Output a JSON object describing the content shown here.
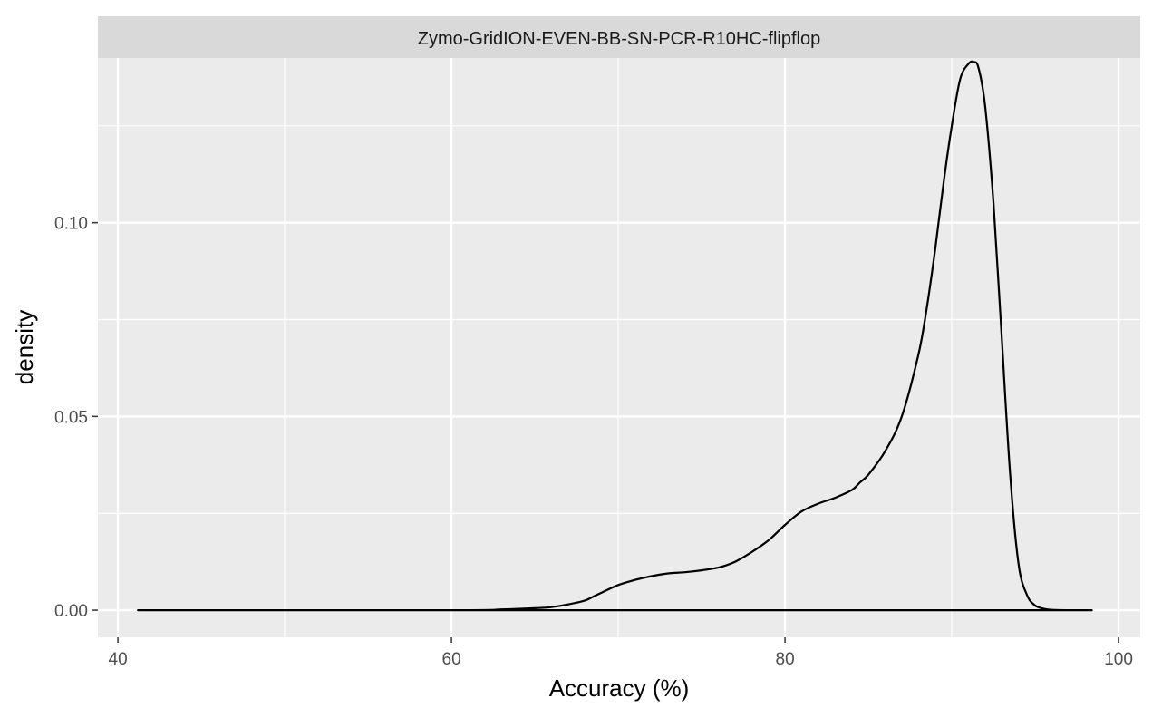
{
  "chart_data": {
    "type": "area",
    "facet_label": "Zymo-GridION-EVEN-BB-SN-PCR-R10HC-flipflop",
    "xlabel": "Accuracy (%)",
    "ylabel": "density",
    "xlim": [
      38.8,
      101.3
    ],
    "ylim": [
      -0.007,
      0.1425
    ],
    "x_ticks": [
      40,
      60,
      80,
      100
    ],
    "x_tick_labels": [
      "40",
      "60",
      "80",
      "100"
    ],
    "x_minor": [
      50,
      70,
      90
    ],
    "y_ticks": [
      0.0,
      0.05,
      0.1
    ],
    "y_tick_labels": [
      "0.00",
      "0.05",
      "0.10"
    ],
    "y_minor": [
      0.025,
      0.075,
      0.125
    ],
    "grid": true,
    "legend": "none",
    "colors": {
      "panel": "#ebebeb",
      "strip": "#d9d9d9",
      "grid": "#ffffff",
      "line": "#000000"
    },
    "series": [
      {
        "x": [
          41.2,
          60.0,
          63.0,
          65.0,
          66.0,
          67.0,
          68.0,
          68.5,
          69.0,
          70.0,
          71.0,
          72.0,
          73.0,
          74.0,
          75.0,
          76.0,
          77.0,
          78.0,
          79.0,
          80.0,
          81.0,
          82.0,
          83.0,
          84.0,
          84.5,
          85.0,
          86.0,
          87.0,
          88.0,
          88.5,
          89.0,
          89.5,
          90.0,
          90.5,
          91.0,
          91.3,
          91.6,
          92.0,
          92.5,
          93.0,
          93.5,
          94.0,
          94.5,
          95.0,
          95.5,
          96.0,
          97.0,
          98.4
        ],
        "y": [
          0.0,
          0.0,
          0.0002,
          0.0005,
          0.0008,
          0.0015,
          0.0025,
          0.0035,
          0.0045,
          0.0065,
          0.0078,
          0.0088,
          0.0095,
          0.0098,
          0.0103,
          0.011,
          0.0125,
          0.015,
          0.018,
          0.022,
          0.0255,
          0.0275,
          0.029,
          0.031,
          0.033,
          0.035,
          0.041,
          0.05,
          0.066,
          0.078,
          0.093,
          0.11,
          0.125,
          0.137,
          0.141,
          0.1415,
          0.14,
          0.13,
          0.105,
          0.07,
          0.035,
          0.012,
          0.004,
          0.0012,
          0.0004,
          0.0001,
          0.0,
          0.0
        ]
      }
    ]
  }
}
